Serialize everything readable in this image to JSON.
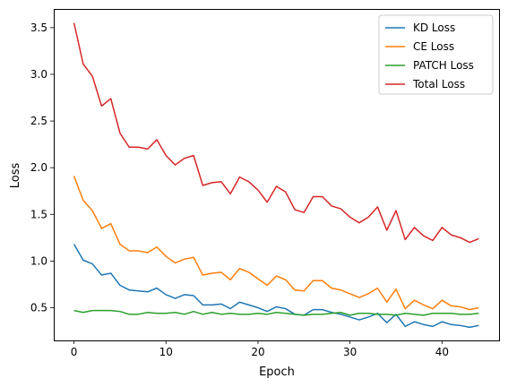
{
  "chart_data": {
    "type": "line",
    "xlabel": "Epoch",
    "ylabel": "Loss",
    "xlim": [
      -2.2,
      46.2
    ],
    "ylim": [
      0.15,
      3.7
    ],
    "xticks": [
      0,
      10,
      20,
      30,
      40
    ],
    "yticks": [
      0.5,
      1.0,
      1.5,
      2.0,
      2.5,
      3.0,
      3.5
    ],
    "ytick_labels": [
      "0.5",
      "1.0",
      "1.5",
      "2.0",
      "2.5",
      "3.0",
      "3.5"
    ],
    "grid": false,
    "legend_position": "top-right",
    "x": [
      0,
      1,
      2,
      3,
      4,
      5,
      6,
      7,
      8,
      9,
      10,
      11,
      12,
      13,
      14,
      15,
      16,
      17,
      18,
      19,
      20,
      21,
      22,
      23,
      24,
      25,
      26,
      27,
      28,
      29,
      30,
      31,
      32,
      33,
      34,
      35,
      36,
      37,
      38,
      39,
      40,
      41,
      42,
      43,
      44
    ],
    "series": [
      {
        "name": "KD Loss",
        "color": "#1f77b4",
        "values": [
          1.18,
          1.01,
          0.97,
          0.85,
          0.87,
          0.74,
          0.69,
          0.68,
          0.67,
          0.71,
          0.64,
          0.6,
          0.64,
          0.63,
          0.53,
          0.53,
          0.54,
          0.49,
          0.56,
          0.53,
          0.5,
          0.46,
          0.51,
          0.49,
          0.43,
          0.42,
          0.48,
          0.48,
          0.45,
          0.43,
          0.4,
          0.37,
          0.4,
          0.44,
          0.34,
          0.43,
          0.3,
          0.35,
          0.32,
          0.3,
          0.35,
          0.32,
          0.31,
          0.29,
          0.31
        ]
      },
      {
        "name": "CE Loss",
        "color": "#ff7f0e",
        "values": [
          1.91,
          1.65,
          1.54,
          1.35,
          1.4,
          1.18,
          1.11,
          1.11,
          1.09,
          1.15,
          1.05,
          0.98,
          1.02,
          1.04,
          0.85,
          0.87,
          0.88,
          0.8,
          0.92,
          0.88,
          0.81,
          0.74,
          0.84,
          0.8,
          0.69,
          0.68,
          0.79,
          0.79,
          0.71,
          0.69,
          0.65,
          0.61,
          0.65,
          0.71,
          0.56,
          0.7,
          0.49,
          0.58,
          0.53,
          0.49,
          0.58,
          0.52,
          0.51,
          0.48,
          0.5
        ]
      },
      {
        "name": "PATCH Loss",
        "color": "#2ca02c",
        "values": [
          0.47,
          0.45,
          0.47,
          0.47,
          0.47,
          0.46,
          0.43,
          0.43,
          0.45,
          0.44,
          0.44,
          0.45,
          0.43,
          0.46,
          0.43,
          0.45,
          0.43,
          0.44,
          0.43,
          0.43,
          0.44,
          0.43,
          0.45,
          0.44,
          0.43,
          0.42,
          0.43,
          0.43,
          0.44,
          0.45,
          0.42,
          0.44,
          0.44,
          0.43,
          0.43,
          0.42,
          0.44,
          0.43,
          0.42,
          0.44,
          0.44,
          0.44,
          0.43,
          0.43,
          0.44
        ]
      },
      {
        "name": "Total Loss",
        "color": "#d62728",
        "values": [
          3.55,
          3.11,
          2.98,
          2.66,
          2.74,
          2.37,
          2.22,
          2.22,
          2.2,
          2.3,
          2.13,
          2.03,
          2.1,
          2.13,
          1.81,
          1.84,
          1.85,
          1.72,
          1.9,
          1.85,
          1.76,
          1.63,
          1.8,
          1.74,
          1.55,
          1.52,
          1.69,
          1.69,
          1.59,
          1.56,
          1.47,
          1.41,
          1.47,
          1.58,
          1.33,
          1.54,
          1.23,
          1.36,
          1.27,
          1.22,
          1.36,
          1.28,
          1.25,
          1.2,
          1.24
        ]
      }
    ]
  }
}
